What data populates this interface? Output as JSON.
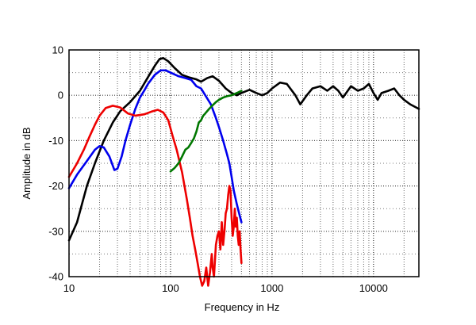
{
  "chart_data": {
    "type": "line",
    "title": "",
    "xlabel": "Frequency in Hz",
    "ylabel": "Amplitude in dB",
    "x_scale": "log",
    "xlim": [
      10,
      28000
    ],
    "ylim": [
      -40,
      10
    ],
    "grid": true,
    "legend": "none",
    "x_ticks": [
      10,
      100,
      1000,
      10000
    ],
    "x_tick_labels": [
      "10",
      "100",
      "1000",
      "10000"
    ],
    "y_ticks": [
      10,
      0,
      -10,
      -20,
      -30,
      -40
    ],
    "y_tick_labels": [
      "10",
      "0",
      "-10",
      "-20",
      "-30",
      "-40"
    ],
    "series": [
      {
        "color": "#000000",
        "points": [
          [
            10,
            -32
          ],
          [
            12,
            -28
          ],
          [
            15,
            -20
          ],
          [
            18,
            -15
          ],
          [
            22,
            -10
          ],
          [
            27,
            -6
          ],
          [
            32,
            -3.5
          ],
          [
            40,
            -1.5
          ],
          [
            50,
            1
          ],
          [
            60,
            4
          ],
          [
            70,
            6.5
          ],
          [
            78,
            8
          ],
          [
            85,
            8.2
          ],
          [
            95,
            7.5
          ],
          [
            110,
            6
          ],
          [
            130,
            4.5
          ],
          [
            150,
            4
          ],
          [
            180,
            3.5
          ],
          [
            200,
            3
          ],
          [
            230,
            3.8
          ],
          [
            260,
            4.2
          ],
          [
            300,
            3.2
          ],
          [
            350,
            1.5
          ],
          [
            400,
            0.5
          ],
          [
            450,
            0
          ],
          [
            500,
            0.5
          ],
          [
            600,
            1.2
          ],
          [
            700,
            0.5
          ],
          [
            800,
            0
          ],
          [
            900,
            0.5
          ],
          [
            1000,
            1.5
          ],
          [
            1200,
            2.8
          ],
          [
            1400,
            2.5
          ],
          [
            1700,
            0
          ],
          [
            1900,
            -2
          ],
          [
            2200,
            0
          ],
          [
            2500,
            1.5
          ],
          [
            3000,
            2
          ],
          [
            3500,
            1
          ],
          [
            4000,
            2
          ],
          [
            4500,
            1
          ],
          [
            5000,
            -0.5
          ],
          [
            6000,
            2
          ],
          [
            7000,
            1
          ],
          [
            8000,
            1.5
          ],
          [
            9000,
            2.5
          ],
          [
            10000,
            0.5
          ],
          [
            11000,
            -1
          ],
          [
            12000,
            0.5
          ],
          [
            14000,
            1
          ],
          [
            16000,
            1.5
          ],
          [
            18000,
            0
          ],
          [
            20000,
            -1
          ],
          [
            23000,
            -2
          ],
          [
            28000,
            -3
          ]
        ]
      },
      {
        "color": "#0000ee",
        "points": [
          [
            10,
            -20.5
          ],
          [
            12,
            -17.5
          ],
          [
            15,
            -14.5
          ],
          [
            18,
            -12
          ],
          [
            20,
            -11.2
          ],
          [
            22,
            -11.5
          ],
          [
            25,
            -13.5
          ],
          [
            28,
            -16.5
          ],
          [
            30,
            -16.2
          ],
          [
            33,
            -13.5
          ],
          [
            36,
            -10
          ],
          [
            40,
            -6.5
          ],
          [
            45,
            -3
          ],
          [
            50,
            -0.5
          ],
          [
            55,
            1
          ],
          [
            60,
            2.5
          ],
          [
            70,
            4.5
          ],
          [
            80,
            5.5
          ],
          [
            90,
            5.5
          ],
          [
            100,
            5
          ],
          [
            120,
            4.2
          ],
          [
            140,
            3.8
          ],
          [
            160,
            3.4
          ],
          [
            180,
            2
          ],
          [
            200,
            1.5
          ],
          [
            220,
            0
          ],
          [
            250,
            -2
          ],
          [
            280,
            -5
          ],
          [
            300,
            -7
          ],
          [
            330,
            -10
          ],
          [
            360,
            -13
          ],
          [
            380,
            -15
          ],
          [
            400,
            -18
          ],
          [
            420,
            -21
          ],
          [
            450,
            -24
          ],
          [
            480,
            -26.5
          ],
          [
            500,
            -28
          ]
        ]
      },
      {
        "color": "#ee0000",
        "points": [
          [
            10,
            -18
          ],
          [
            12,
            -15
          ],
          [
            14,
            -12
          ],
          [
            16,
            -9
          ],
          [
            18,
            -6.5
          ],
          [
            20,
            -4.5
          ],
          [
            23,
            -2.8
          ],
          [
            27,
            -2.3
          ],
          [
            32,
            -2.7
          ],
          [
            38,
            -4
          ],
          [
            45,
            -4.5
          ],
          [
            55,
            -4.2
          ],
          [
            65,
            -3.6
          ],
          [
            75,
            -3.2
          ],
          [
            85,
            -3.8
          ],
          [
            95,
            -5.5
          ],
          [
            105,
            -9
          ],
          [
            115,
            -12
          ],
          [
            130,
            -17
          ],
          [
            145,
            -23
          ],
          [
            155,
            -27
          ],
          [
            165,
            -31
          ],
          [
            175,
            -34
          ],
          [
            185,
            -37
          ],
          [
            195,
            -40
          ],
          [
            205,
            -42
          ],
          [
            215,
            -41
          ],
          [
            225,
            -38
          ],
          [
            235,
            -42
          ],
          [
            245,
            -39
          ],
          [
            255,
            -35
          ],
          [
            260,
            -38
          ],
          [
            268,
            -40
          ],
          [
            280,
            -33
          ],
          [
            290,
            -31
          ],
          [
            300,
            -30
          ],
          [
            310,
            -34
          ],
          [
            320,
            -28
          ],
          [
            330,
            -33
          ],
          [
            340,
            -30
          ],
          [
            350,
            -26
          ],
          [
            360,
            -25
          ],
          [
            370,
            -22
          ],
          [
            380,
            -20
          ],
          [
            390,
            -21
          ],
          [
            400,
            -27
          ],
          [
            410,
            -31
          ],
          [
            420,
            -29
          ],
          [
            430,
            -25
          ],
          [
            440,
            -29
          ],
          [
            450,
            -27
          ],
          [
            460,
            -31
          ],
          [
            470,
            -33
          ],
          [
            480,
            -30
          ],
          [
            490,
            -34
          ],
          [
            500,
            -37
          ]
        ]
      },
      {
        "color": "#007700",
        "points": [
          [
            100,
            -16.8
          ],
          [
            110,
            -16
          ],
          [
            120,
            -15
          ],
          [
            130,
            -13.5
          ],
          [
            140,
            -12
          ],
          [
            150,
            -11.5
          ],
          [
            160,
            -10.5
          ],
          [
            170,
            -9.5
          ],
          [
            180,
            -8
          ],
          [
            190,
            -6
          ],
          [
            200,
            -5.5
          ],
          [
            210,
            -4.5
          ],
          [
            220,
            -4
          ],
          [
            240,
            -3
          ],
          [
            260,
            -2.2
          ],
          [
            280,
            -1.5
          ],
          [
            300,
            -1
          ],
          [
            330,
            -0.5
          ],
          [
            360,
            -0.2
          ],
          [
            400,
            0
          ],
          [
            430,
            0.3
          ],
          [
            460,
            0.6
          ],
          [
            500,
            1
          ]
        ]
      }
    ]
  }
}
